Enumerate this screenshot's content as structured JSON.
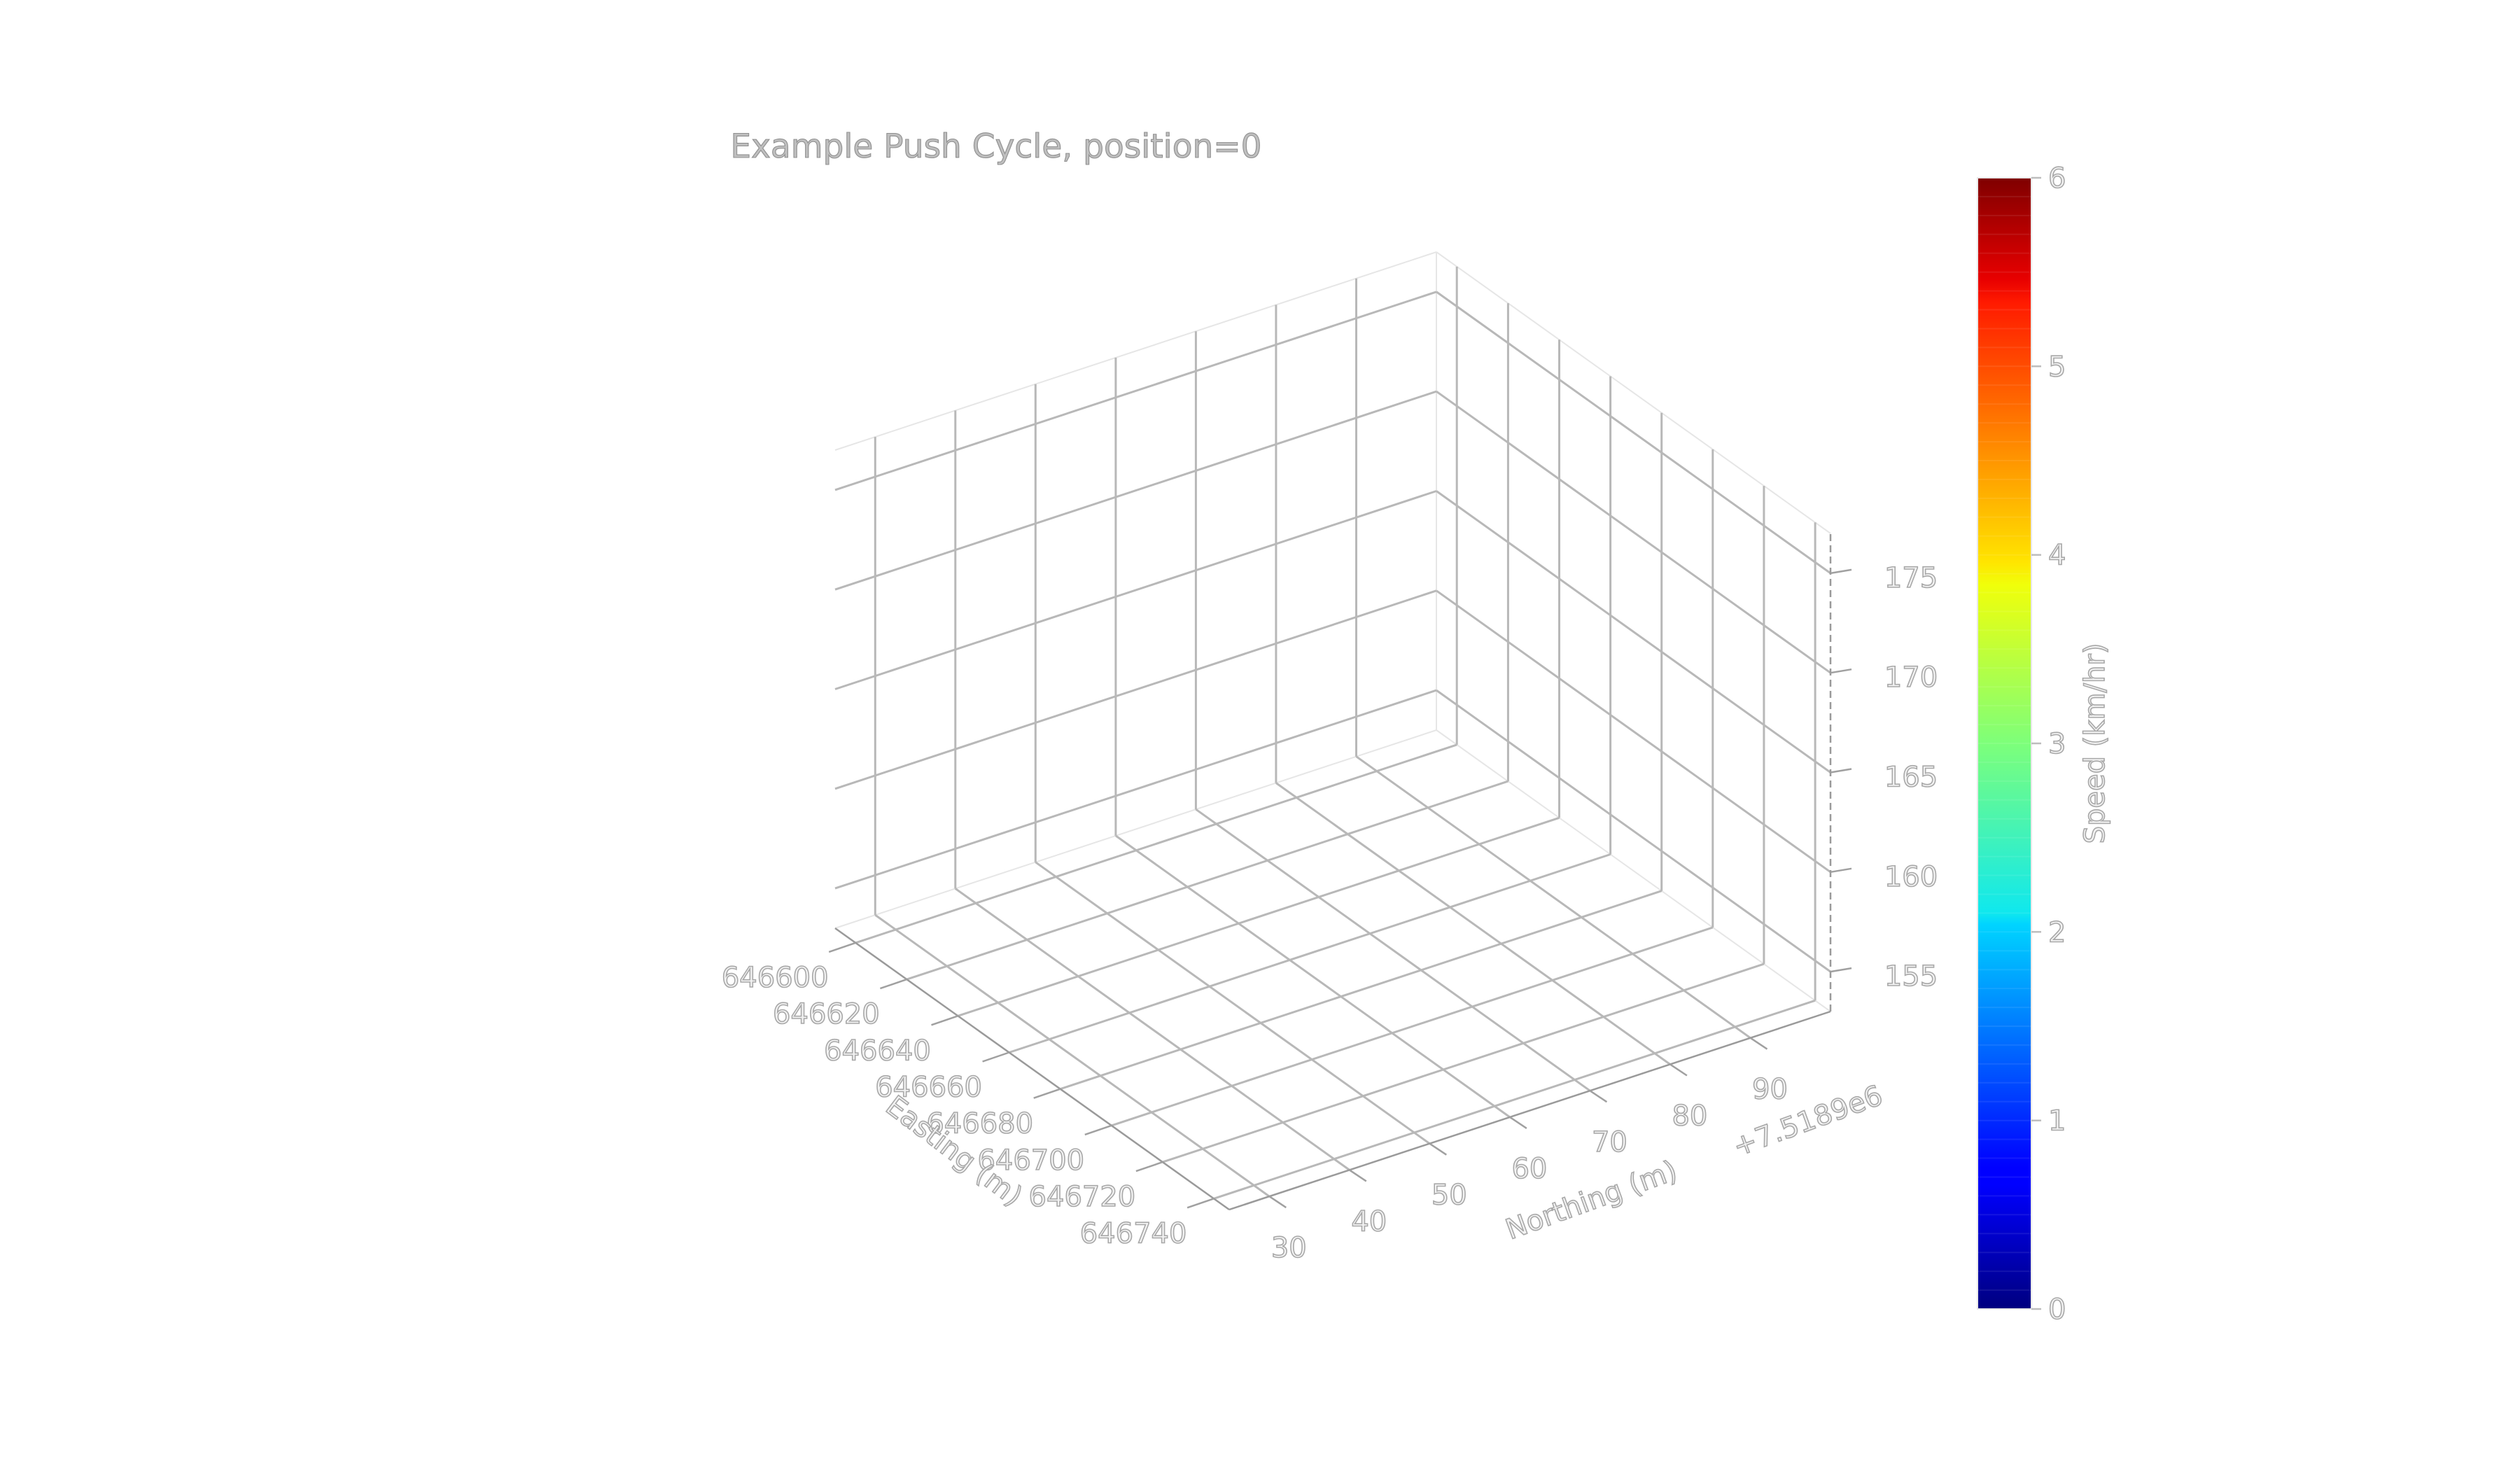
{
  "chart_data": {
    "type": "scatter",
    "projection": "3d",
    "title": "Example Push Cycle, position=0",
    "x_axis": {
      "label": "Easting (m)",
      "ticks": [
        646600,
        646620,
        646640,
        646660,
        646680,
        646700,
        646720,
        646740
      ],
      "tick_labels": [
        "646600",
        "646620",
        "646640",
        "646660",
        "646680",
        "646700",
        "646720",
        "646740"
      ],
      "range": [
        646592,
        646746
      ]
    },
    "y_axis": {
      "label": "Northing (m)",
      "ticks": [
        30,
        40,
        50,
        60,
        70,
        80,
        90
      ],
      "tick_labels": [
        "30",
        "40",
        "50",
        "60",
        "70",
        "80",
        "90"
      ],
      "offset_text": "+7.5189e6",
      "range": [
        25,
        100
      ]
    },
    "z_axis": {
      "label": "",
      "ticks": [
        155,
        160,
        165,
        170,
        175
      ],
      "tick_labels": [
        "155",
        "160",
        "165",
        "170",
        "175"
      ],
      "range": [
        153,
        177
      ]
    },
    "series": [
      {
        "points": []
      }
    ],
    "colorbar": {
      "label": "Speed (km/hr)",
      "colormap": "jet",
      "range": [
        0,
        6
      ],
      "ticks": [
        0,
        1,
        2,
        3,
        4,
        5,
        6
      ],
      "tick_labels": [
        "0",
        "1",
        "2",
        "3",
        "4",
        "5",
        "6"
      ]
    },
    "grid": true,
    "legend": "none"
  }
}
